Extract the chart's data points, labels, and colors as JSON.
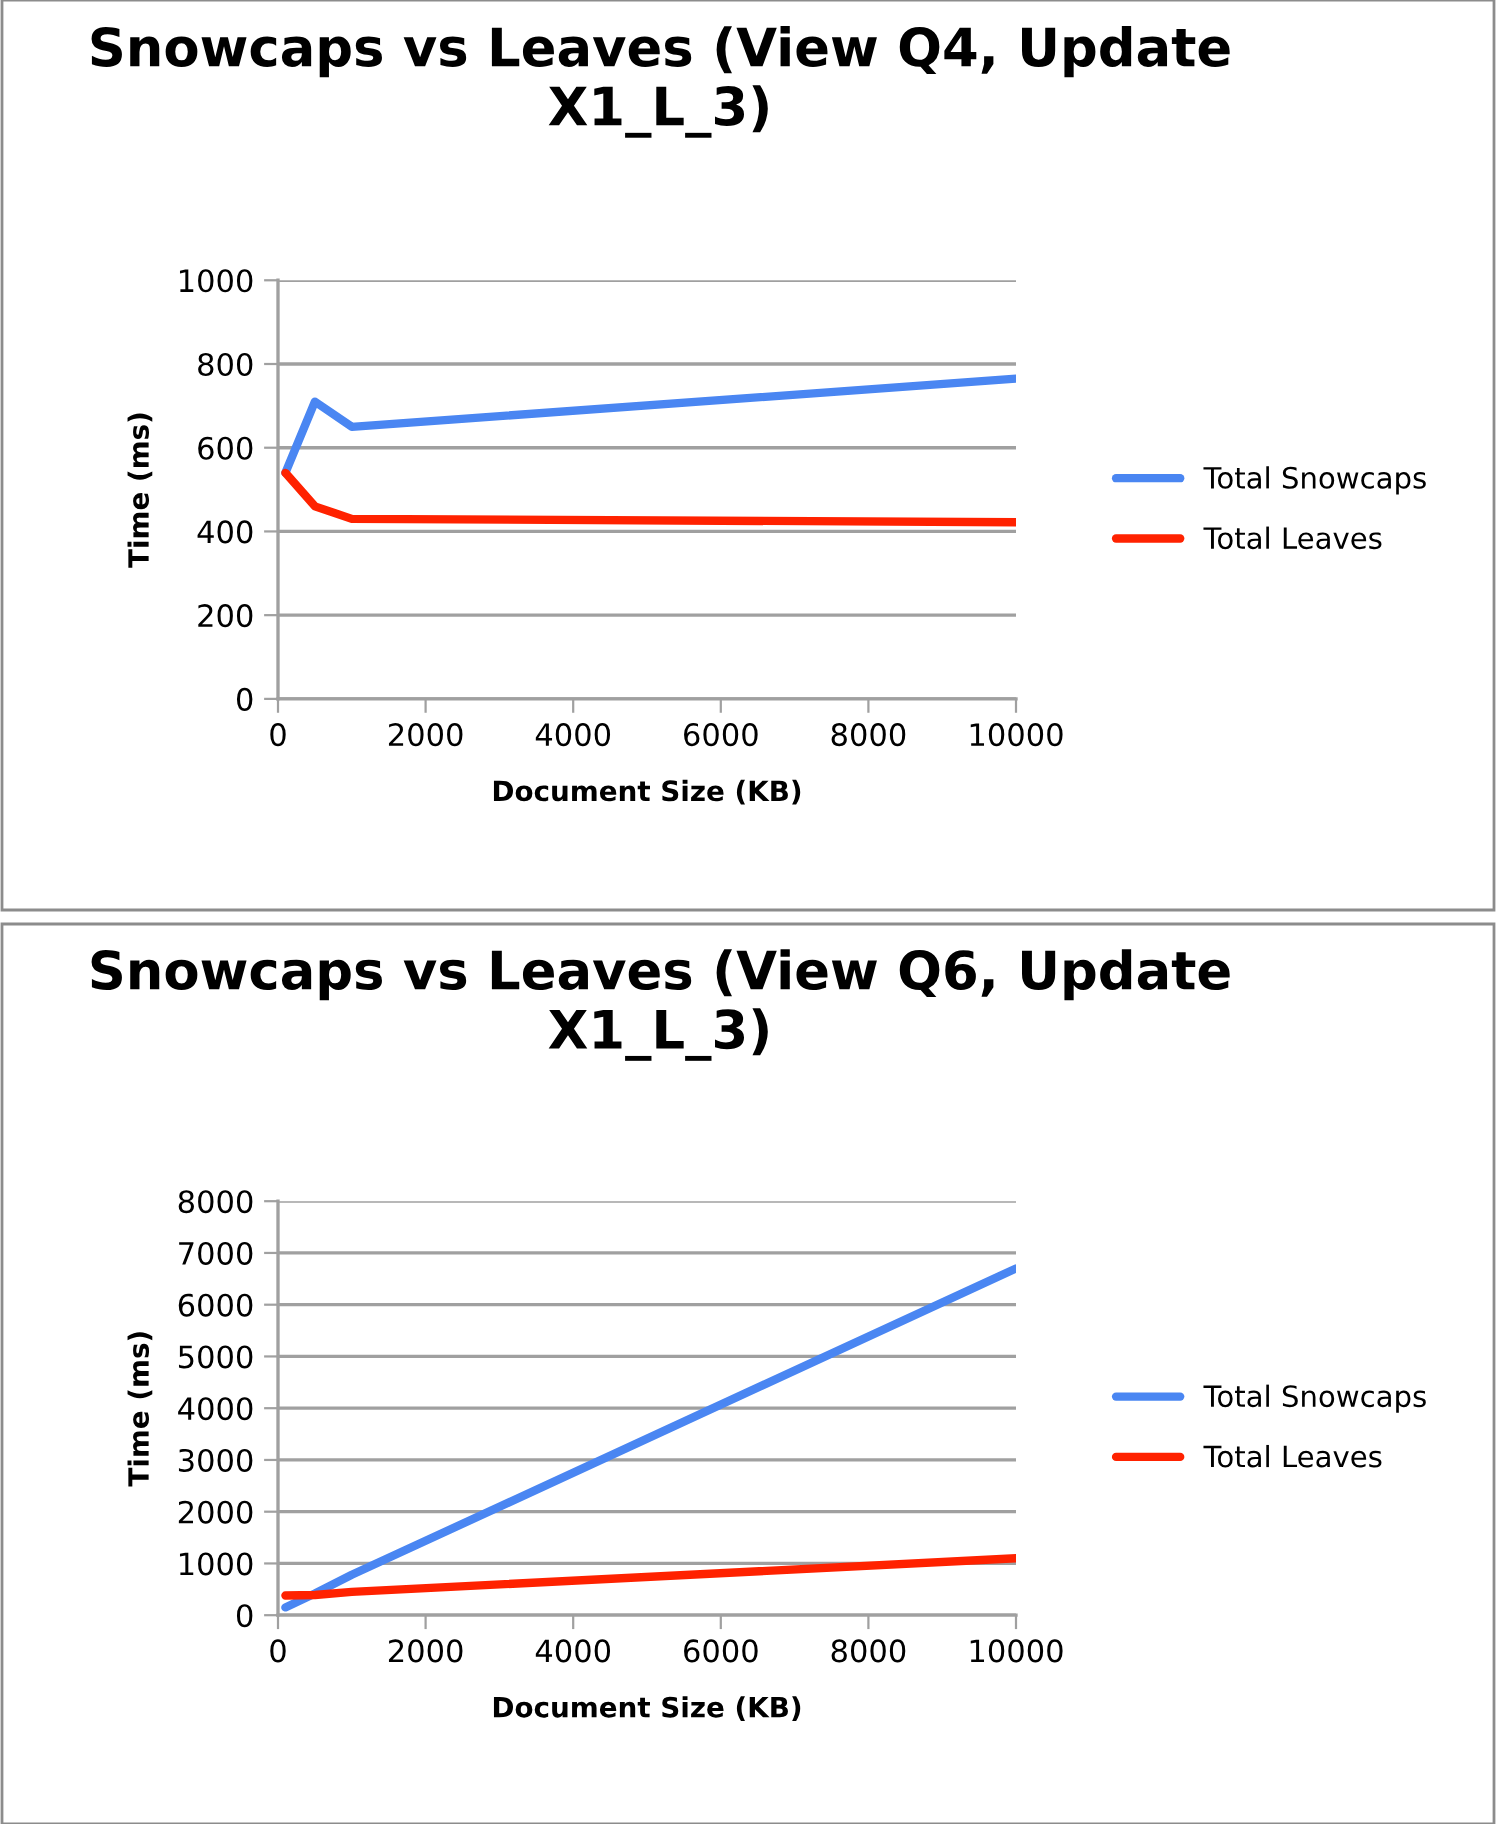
{
  "chart_data": [
    {
      "type": "line",
      "title": "Snowcaps vs Leaves (View Q4, Update X1_L_3)",
      "xlabel": "Document Size (KB)",
      "ylabel": "Time (ms)",
      "x": [
        100,
        500,
        1000,
        10000
      ],
      "series": [
        {
          "name": "Total Snowcaps",
          "color": "#4a86f2",
          "values": [
            540,
            710,
            650,
            765
          ]
        },
        {
          "name": "Total Leaves",
          "color": "#ff2200",
          "values": [
            540,
            460,
            430,
            422
          ]
        }
      ],
      "xlim": [
        0,
        10000
      ],
      "xticks": [
        0,
        2000,
        4000,
        6000,
        8000,
        10000
      ],
      "ylim": [
        0,
        1000
      ],
      "yticks": [
        0,
        200,
        400,
        600,
        800,
        1000
      ],
      "grid": "y",
      "legend": "right",
      "marker": "none",
      "line_style": "solid"
    },
    {
      "type": "line",
      "title": "Snowcaps vs Leaves (View Q6, Update X1_L_3)",
      "xlabel": "Document Size (KB)",
      "ylabel": "Time (ms)",
      "x": [
        100,
        500,
        1000,
        10000
      ],
      "series": [
        {
          "name": "Total Snowcaps",
          "color": "#4a86f2",
          "values": [
            150,
            420,
            780,
            6700
          ]
        },
        {
          "name": "Total Leaves",
          "color": "#ff2200",
          "values": [
            380,
            390,
            450,
            1100
          ]
        }
      ],
      "xlim": [
        0,
        10000
      ],
      "xticks": [
        0,
        2000,
        4000,
        6000,
        8000,
        10000
      ],
      "ylim": [
        0,
        8000
      ],
      "yticks": [
        0,
        1000,
        2000,
        3000,
        4000,
        5000,
        6000,
        7000,
        8000
      ],
      "grid": "y",
      "legend": "right",
      "marker": "none",
      "line_style": "solid"
    }
  ]
}
